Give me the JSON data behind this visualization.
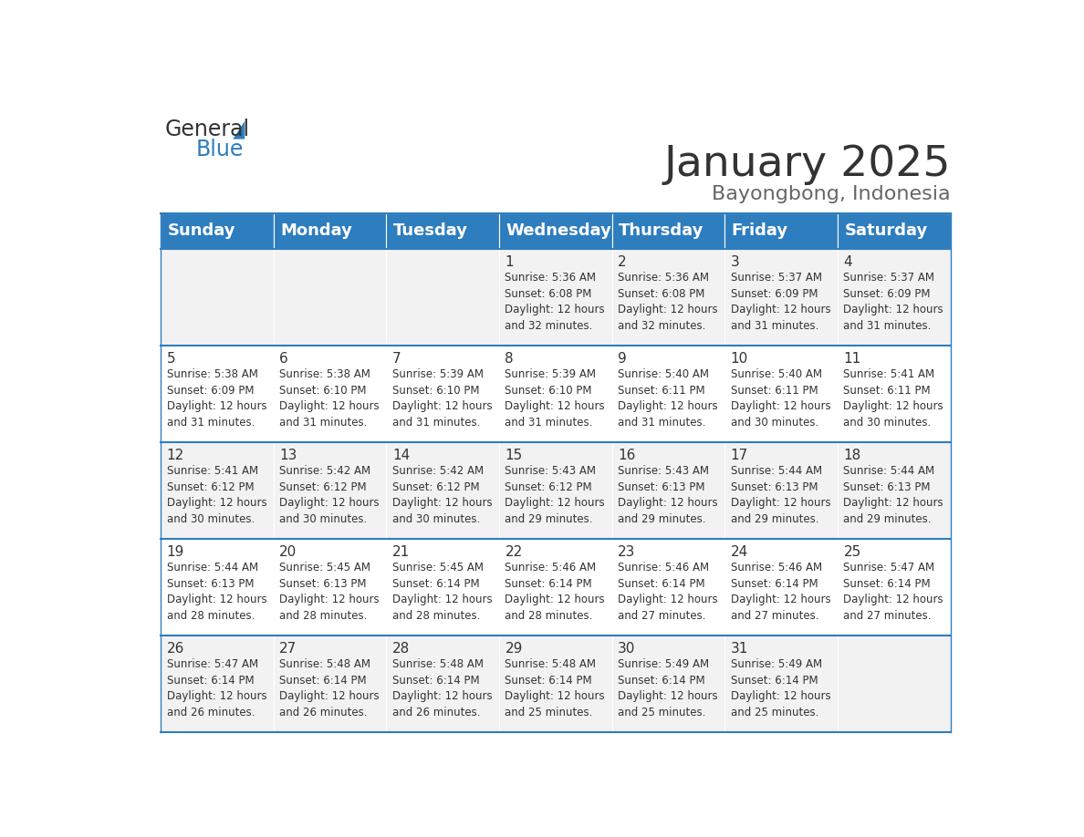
{
  "title": "January 2025",
  "subtitle": "Bayongbong, Indonesia",
  "header_bg_color": "#2E7DBE",
  "header_text_color": "#FFFFFF",
  "odd_row_bg": "#F2F2F2",
  "even_row_bg": "#FFFFFF",
  "day_headers": [
    "Sunday",
    "Monday",
    "Tuesday",
    "Wednesday",
    "Thursday",
    "Friday",
    "Saturday"
  ],
  "calendar_data": [
    [
      "",
      "",
      "",
      "1\nSunrise: 5:36 AM\nSunset: 6:08 PM\nDaylight: 12 hours\nand 32 minutes.",
      "2\nSunrise: 5:36 AM\nSunset: 6:08 PM\nDaylight: 12 hours\nand 32 minutes.",
      "3\nSunrise: 5:37 AM\nSunset: 6:09 PM\nDaylight: 12 hours\nand 31 minutes.",
      "4\nSunrise: 5:37 AM\nSunset: 6:09 PM\nDaylight: 12 hours\nand 31 minutes."
    ],
    [
      "5\nSunrise: 5:38 AM\nSunset: 6:09 PM\nDaylight: 12 hours\nand 31 minutes.",
      "6\nSunrise: 5:38 AM\nSunset: 6:10 PM\nDaylight: 12 hours\nand 31 minutes.",
      "7\nSunrise: 5:39 AM\nSunset: 6:10 PM\nDaylight: 12 hours\nand 31 minutes.",
      "8\nSunrise: 5:39 AM\nSunset: 6:10 PM\nDaylight: 12 hours\nand 31 minutes.",
      "9\nSunrise: 5:40 AM\nSunset: 6:11 PM\nDaylight: 12 hours\nand 31 minutes.",
      "10\nSunrise: 5:40 AM\nSunset: 6:11 PM\nDaylight: 12 hours\nand 30 minutes.",
      "11\nSunrise: 5:41 AM\nSunset: 6:11 PM\nDaylight: 12 hours\nand 30 minutes."
    ],
    [
      "12\nSunrise: 5:41 AM\nSunset: 6:12 PM\nDaylight: 12 hours\nand 30 minutes.",
      "13\nSunrise: 5:42 AM\nSunset: 6:12 PM\nDaylight: 12 hours\nand 30 minutes.",
      "14\nSunrise: 5:42 AM\nSunset: 6:12 PM\nDaylight: 12 hours\nand 30 minutes.",
      "15\nSunrise: 5:43 AM\nSunset: 6:12 PM\nDaylight: 12 hours\nand 29 minutes.",
      "16\nSunrise: 5:43 AM\nSunset: 6:13 PM\nDaylight: 12 hours\nand 29 minutes.",
      "17\nSunrise: 5:44 AM\nSunset: 6:13 PM\nDaylight: 12 hours\nand 29 minutes.",
      "18\nSunrise: 5:44 AM\nSunset: 6:13 PM\nDaylight: 12 hours\nand 29 minutes."
    ],
    [
      "19\nSunrise: 5:44 AM\nSunset: 6:13 PM\nDaylight: 12 hours\nand 28 minutes.",
      "20\nSunrise: 5:45 AM\nSunset: 6:13 PM\nDaylight: 12 hours\nand 28 minutes.",
      "21\nSunrise: 5:45 AM\nSunset: 6:14 PM\nDaylight: 12 hours\nand 28 minutes.",
      "22\nSunrise: 5:46 AM\nSunset: 6:14 PM\nDaylight: 12 hours\nand 28 minutes.",
      "23\nSunrise: 5:46 AM\nSunset: 6:14 PM\nDaylight: 12 hours\nand 27 minutes.",
      "24\nSunrise: 5:46 AM\nSunset: 6:14 PM\nDaylight: 12 hours\nand 27 minutes.",
      "25\nSunrise: 5:47 AM\nSunset: 6:14 PM\nDaylight: 12 hours\nand 27 minutes."
    ],
    [
      "26\nSunrise: 5:47 AM\nSunset: 6:14 PM\nDaylight: 12 hours\nand 26 minutes.",
      "27\nSunrise: 5:48 AM\nSunset: 6:14 PM\nDaylight: 12 hours\nand 26 minutes.",
      "28\nSunrise: 5:48 AM\nSunset: 6:14 PM\nDaylight: 12 hours\nand 26 minutes.",
      "29\nSunrise: 5:48 AM\nSunset: 6:14 PM\nDaylight: 12 hours\nand 25 minutes.",
      "30\nSunrise: 5:49 AM\nSunset: 6:14 PM\nDaylight: 12 hours\nand 25 minutes.",
      "31\nSunrise: 5:49 AM\nSunset: 6:14 PM\nDaylight: 12 hours\nand 25 minutes.",
      ""
    ]
  ],
  "logo_text_general": "General",
  "logo_text_blue": "Blue",
  "logo_color_general": "#333333",
  "logo_color_blue": "#2E7DBE",
  "title_color": "#333333",
  "subtitle_color": "#666666",
  "cell_text_color": "#333333",
  "separator_color": "#2E7DBE",
  "cell_font_size": 8.5,
  "day_number_font_size": 11,
  "header_font_size": 13
}
